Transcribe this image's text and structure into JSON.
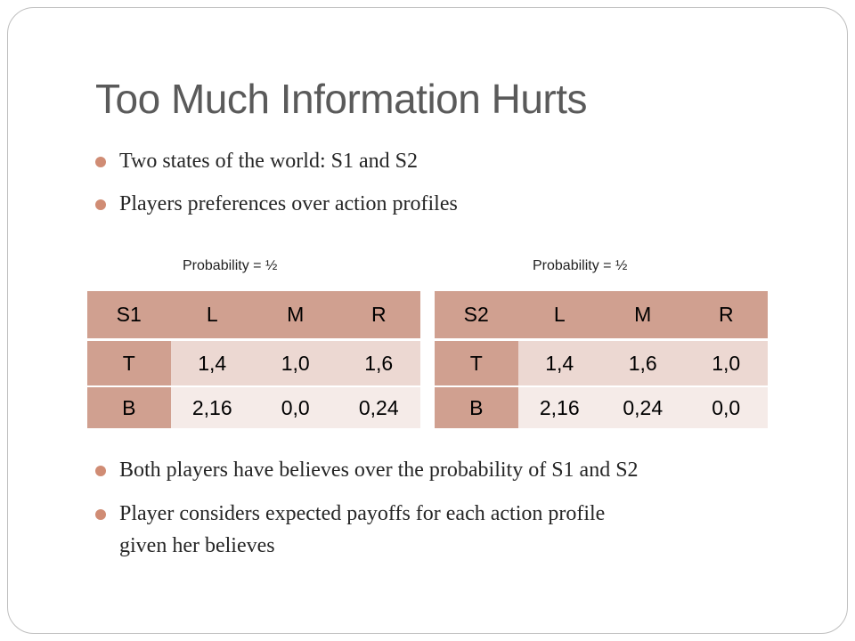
{
  "title": "Too Much Information Hurts",
  "bullets_top": [
    "Two states of the world: S1 and S2",
    "Players preferences over action profiles"
  ],
  "bullets_bottom": [
    {
      "lines": [
        "Both players have believes over the probability of S1 and S2"
      ]
    },
    {
      "lines": [
        "Player considers expected payoffs for each action profile",
        "given her believes"
      ]
    }
  ],
  "tables": [
    {
      "probability_label": "Probability = ½",
      "header": [
        "S1",
        "L",
        "M",
        "R"
      ],
      "rows": [
        [
          "T",
          "1,4",
          "1,0",
          "1,6"
        ],
        [
          "B",
          "2,16",
          "0,0",
          "0,24"
        ]
      ]
    },
    {
      "probability_label": "Probability = ½",
      "header": [
        "S2",
        "L",
        "M",
        "R"
      ],
      "rows": [
        [
          "T",
          "1,4",
          "1,6",
          "1,0"
        ],
        [
          "B",
          "2,16",
          "0,24",
          "0,0"
        ]
      ]
    }
  ],
  "colors": {
    "accent": "#d08c74",
    "table_header": "#d0a090",
    "row_odd": "#ecd8d2",
    "row_even": "#f5ebe8",
    "title": "#5a5a5a"
  }
}
